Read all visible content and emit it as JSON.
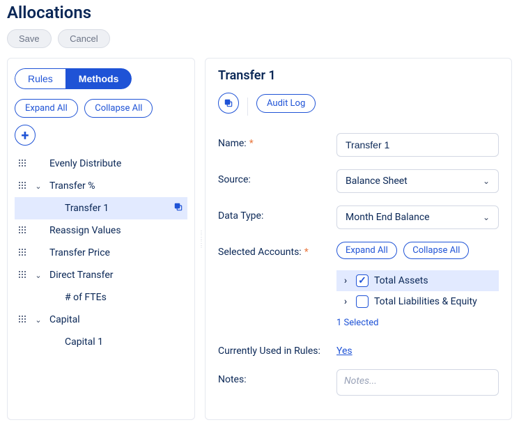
{
  "page_title": "Allocations",
  "actions": {
    "save": "Save",
    "cancel": "Cancel"
  },
  "left": {
    "tabs": {
      "rules": "Rules",
      "methods": "Methods",
      "active": "methods"
    },
    "expand": "Expand All",
    "collapse": "Collapse All",
    "tree": [
      {
        "label": "Evenly Distribute",
        "level": 0,
        "handle": true,
        "chev": "",
        "selected": false
      },
      {
        "label": "Transfer %",
        "level": 0,
        "handle": true,
        "chev": "down",
        "selected": false
      },
      {
        "label": "Transfer 1",
        "level": 1,
        "handle": false,
        "chev": "",
        "selected": true,
        "copy": true
      },
      {
        "label": "Reassign Values",
        "level": 0,
        "handle": true,
        "chev": "",
        "selected": false
      },
      {
        "label": "Transfer Price",
        "level": 0,
        "handle": true,
        "chev": "",
        "selected": false
      },
      {
        "label": "Direct Transfer",
        "level": 0,
        "handle": true,
        "chev": "down",
        "selected": false
      },
      {
        "label": "# of FTEs",
        "level": 1,
        "handle": false,
        "chev": "",
        "selected": false
      },
      {
        "label": "Capital",
        "level": 0,
        "handle": true,
        "chev": "down",
        "selected": false
      },
      {
        "label": "Capital 1",
        "level": 1,
        "handle": false,
        "chev": "",
        "selected": false
      }
    ]
  },
  "right": {
    "title": "Transfer 1",
    "audit_log": "Audit Log",
    "fields": {
      "name": {
        "label": "Name:",
        "required": true,
        "value": "Transfer 1"
      },
      "source": {
        "label": "Source:",
        "required": false,
        "value": "Balance Sheet"
      },
      "data_type": {
        "label": "Data Type:",
        "required": false,
        "value": "Month End Balance"
      },
      "selected_accounts": {
        "label": "Selected Accounts:",
        "required": true,
        "expand": "Expand All",
        "collapse": "Collapse All",
        "items": [
          {
            "label": "Total Assets",
            "checked": true,
            "selected": true
          },
          {
            "label": "Total Liabilities & Equity",
            "checked": false,
            "selected": false
          }
        ],
        "count_text": "1 Selected"
      },
      "used": {
        "label": "Currently Used in Rules:",
        "value": "Yes"
      },
      "notes": {
        "label": "Notes:",
        "placeholder": "Notes..."
      }
    }
  },
  "colors": {
    "primary": "#1f53d6",
    "heading": "#0a2756",
    "muted": "#6c7486",
    "border": "#d2d7e3",
    "sel_bg": "#e2eaff",
    "req": "#e97840"
  }
}
